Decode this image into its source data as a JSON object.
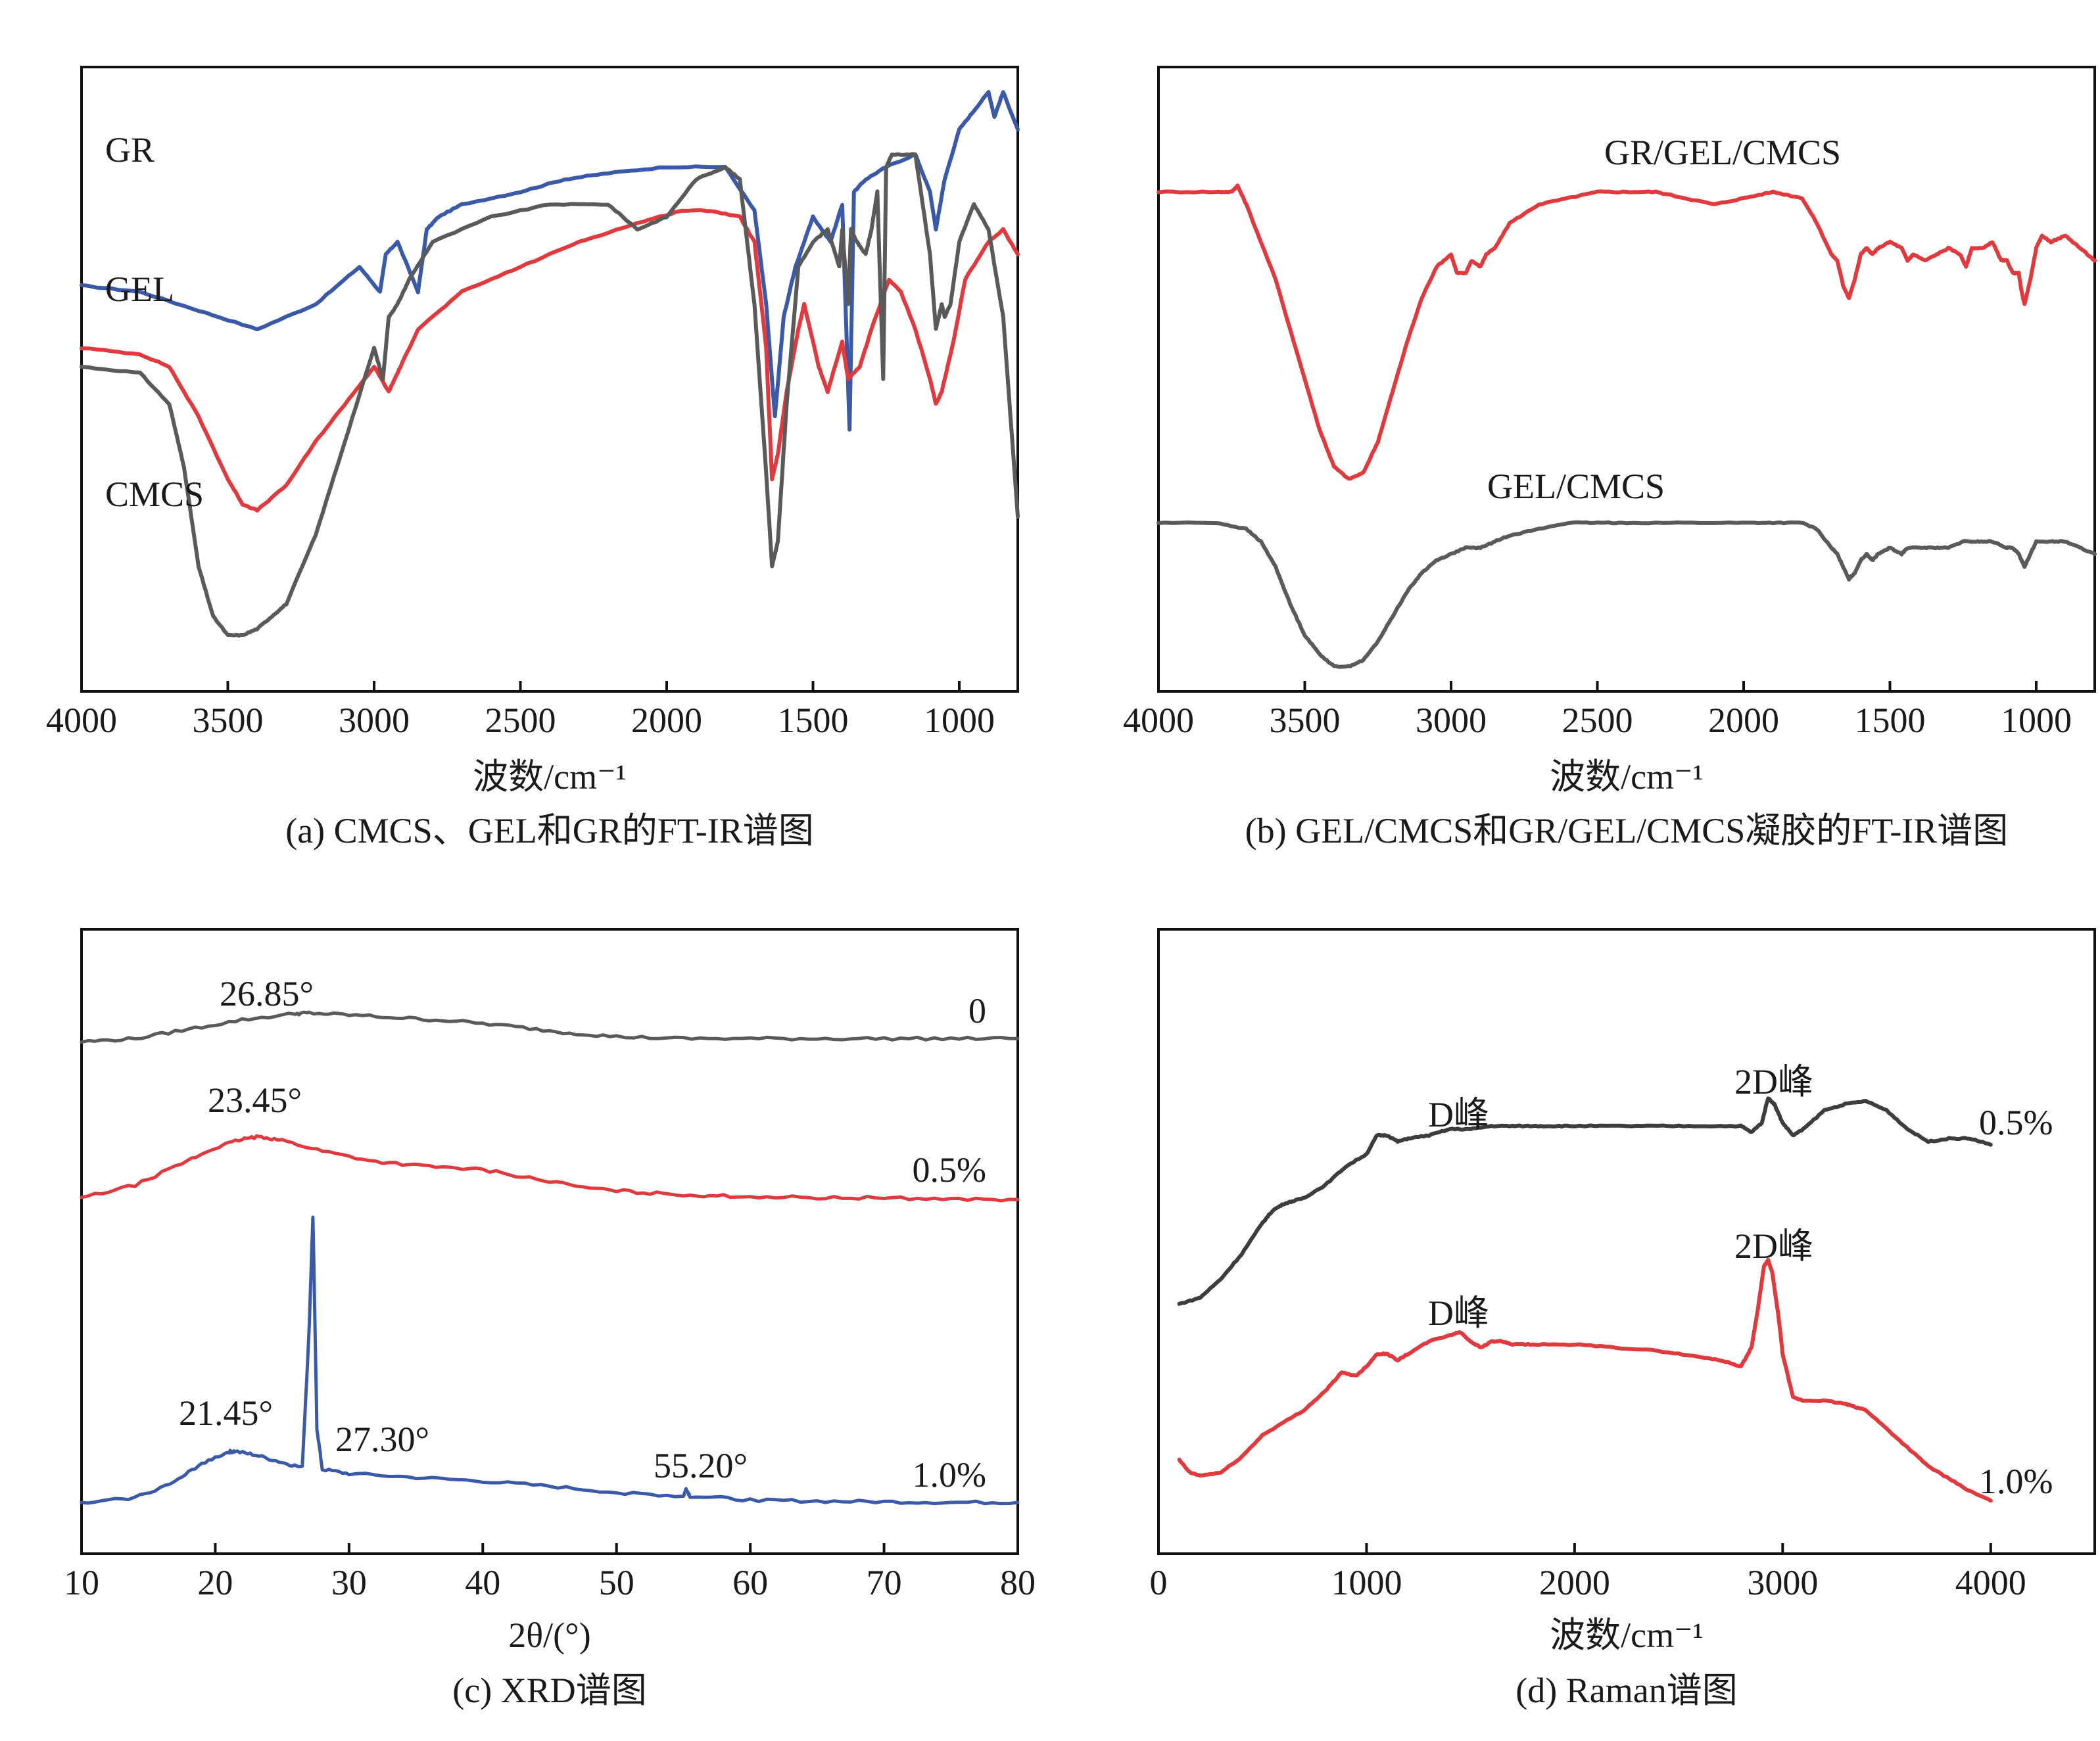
{
  "colors": {
    "gray": "#5a5a5a",
    "red": "#e03a3e",
    "blue": "#3a5aa8",
    "dark": "#3d3d3d",
    "axis": "#111111"
  },
  "chart_data": [
    {
      "id": "a",
      "type": "line",
      "caption": "(a) CMCS、GEL和GR的FT-IR谱图",
      "xlabel": "波数/cm⁻¹",
      "ylabel": "",
      "xlim": [
        4000,
        800
      ],
      "xticks": [
        4000,
        3500,
        3000,
        2500,
        2000,
        1500,
        1000
      ],
      "series": [
        {
          "name": "GR",
          "label": "GR",
          "color": "blue",
          "x": [
            4000,
            3800,
            3600,
            3400,
            3200,
            3050,
            2980,
            2960,
            2920,
            2850,
            2820,
            2780,
            2700,
            2500,
            2350,
            2200,
            2000,
            1800,
            1700,
            1660,
            1630,
            1600,
            1560,
            1500,
            1440,
            1400,
            1375,
            1360,
            1320,
            1250,
            1150,
            1100,
            1080,
            1050,
            1000,
            950,
            900,
            880,
            850,
            800
          ],
          "y": [
            65,
            64,
            61,
            58,
            62,
            68,
            64,
            70,
            72,
            64,
            74,
            76,
            78,
            80,
            82,
            83,
            84,
            84,
            77,
            62,
            44,
            60,
            68,
            76,
            72,
            78,
            42,
            80,
            82,
            84,
            86,
            80,
            74,
            82,
            90,
            93,
            96,
            92,
            96,
            90
          ]
        },
        {
          "name": "GEL",
          "label": "GEL",
          "color": "red",
          "x": [
            4000,
            3800,
            3700,
            3600,
            3500,
            3450,
            3400,
            3300,
            3200,
            3100,
            3000,
            2950,
            2930,
            2900,
            2850,
            2700,
            2500,
            2300,
            2100,
            1950,
            1850,
            1750,
            1700,
            1660,
            1640,
            1620,
            1590,
            1550,
            1530,
            1480,
            1450,
            1400,
            1380,
            1340,
            1300,
            1240,
            1200,
            1150,
            1100,
            1080,
            1060,
            1020,
            980,
            900,
            850,
            800
          ],
          "y": [
            55,
            54,
            52,
            44,
            34,
            30,
            29,
            33,
            40,
            46,
            52,
            48,
            50,
            53,
            58,
            64,
            68,
            72,
            75,
            77,
            77,
            76,
            72,
            55,
            34,
            38,
            48,
            58,
            62,
            52,
            48,
            56,
            50,
            52,
            58,
            66,
            64,
            58,
            50,
            46,
            48,
            56,
            66,
            72,
            74,
            70
          ]
        },
        {
          "name": "CMCS",
          "label": "CMCS",
          "color": "gray",
          "x": [
            4000,
            3800,
            3700,
            3650,
            3600,
            3550,
            3500,
            3450,
            3400,
            3350,
            3300,
            3200,
            3100,
            3000,
            2970,
            2950,
            2920,
            2880,
            2800,
            2600,
            2400,
            2200,
            2100,
            2000,
            1900,
            1800,
            1750,
            1700,
            1660,
            1640,
            1620,
            1590,
            1550,
            1500,
            1450,
            1410,
            1400,
            1380,
            1370,
            1350,
            1320,
            1300,
            1280,
            1260,
            1250,
            1230,
            1150,
            1100,
            1080,
            1060,
            1050,
            1030,
            1000,
            950,
            900,
            850,
            800
          ],
          "y": [
            52,
            51,
            46,
            36,
            20,
            12,
            9,
            9,
            10,
            12,
            14,
            25,
            40,
            55,
            50,
            60,
            62,
            66,
            72,
            76,
            78,
            78,
            74,
            76,
            82,
            84,
            82,
            62,
            35,
            20,
            24,
            46,
            68,
            72,
            74,
            68,
            74,
            62,
            74,
            72,
            70,
            74,
            80,
            50,
            84,
            86,
            86,
            70,
            58,
            62,
            60,
            62,
            72,
            78,
            74,
            60,
            28
          ]
        }
      ]
    },
    {
      "id": "b",
      "type": "line",
      "caption": "(b) GEL/CMCS和GR/GEL/CMCS凝胶的FT-IR谱图",
      "xlabel": "波数/cm⁻¹",
      "ylabel": "",
      "xlim": [
        4000,
        800
      ],
      "xticks": [
        4000,
        3500,
        3000,
        2500,
        2000,
        1500,
        1000
      ],
      "series": [
        {
          "name": "GR/GEL/CMCS",
          "label": "GR/GEL/CMCS",
          "color": "red",
          "x": [
            4000,
            3800,
            3750,
            3730,
            3700,
            3600,
            3500,
            3450,
            3400,
            3350,
            3300,
            3250,
            3200,
            3150,
            3100,
            3050,
            3000,
            2980,
            2950,
            2930,
            2900,
            2880,
            2850,
            2800,
            2700,
            2600,
            2500,
            2400,
            2300,
            2200,
            2100,
            2000,
            1900,
            1800,
            1750,
            1700,
            1680,
            1660,
            1640,
            1620,
            1600,
            1580,
            1560,
            1540,
            1500,
            1460,
            1440,
            1420,
            1380,
            1340,
            1300,
            1260,
            1240,
            1220,
            1180,
            1150,
            1120,
            1100,
            1080,
            1060,
            1050,
            1040,
            1020,
            1000,
            980,
            950,
            900,
            850,
            800
          ],
          "y": [
            80,
            80,
            80,
            81,
            78,
            66,
            50,
            42,
            36,
            34,
            35,
            40,
            48,
            56,
            63,
            68,
            70,
            67,
            67,
            69,
            68,
            70,
            71,
            75,
            78,
            79,
            80,
            80,
            80,
            79,
            78,
            79,
            80,
            79,
            75,
            70,
            69,
            65,
            63,
            66,
            70,
            71,
            70,
            71,
            72,
            71,
            69,
            70,
            69,
            70,
            71,
            70,
            68,
            71,
            71,
            72,
            69,
            69,
            67,
            67,
            64,
            62,
            66,
            71,
            73,
            72,
            73,
            71,
            69
          ]
        },
        {
          "name": "GEL/CMCS",
          "label": "GEL/CMCS",
          "color": "gray",
          "x": [
            4000,
            3800,
            3700,
            3650,
            3600,
            3550,
            3500,
            3450,
            3400,
            3350,
            3300,
            3250,
            3200,
            3150,
            3100,
            3050,
            3000,
            2950,
            2900,
            2850,
            2800,
            2700,
            2600,
            2500,
            2400,
            2200,
            2000,
            1900,
            1800,
            1750,
            1700,
            1680,
            1660,
            1640,
            1620,
            1600,
            1580,
            1560,
            1540,
            1500,
            1460,
            1440,
            1400,
            1350,
            1300,
            1250,
            1200,
            1150,
            1100,
            1080,
            1060,
            1050,
            1040,
            1020,
            1000,
            950,
            900,
            850,
            800
          ],
          "y": [
            27,
            27,
            26,
            24,
            20,
            14,
            9,
            6,
            4,
            4,
            5,
            8,
            12,
            16,
            19,
            21,
            22,
            23,
            23,
            24,
            25,
            26,
            27,
            27,
            27,
            27,
            27,
            27,
            27,
            26,
            23,
            22,
            20,
            18,
            19,
            21,
            22,
            21,
            22,
            23,
            22,
            23,
            23,
            23,
            23,
            24,
            24,
            24,
            23,
            23,
            22,
            21,
            20,
            22,
            24,
            24,
            24,
            23,
            22
          ]
        }
      ]
    },
    {
      "id": "c",
      "type": "line",
      "caption": "(c) XRD谱图",
      "xlabel": "2θ/(°)",
      "ylabel": "",
      "xlim": [
        10,
        80
      ],
      "xticks": [
        10,
        20,
        30,
        40,
        50,
        60,
        70,
        80
      ],
      "series": [
        {
          "name": "0",
          "label": "0",
          "color": "gray",
          "x": [
            10,
            14,
            18,
            22,
            26,
            27,
            30,
            34,
            38,
            42,
            46,
            50,
            55,
            60,
            65,
            70,
            75,
            80
          ],
          "y": [
            82,
            82.5,
            84,
            85.5,
            86.5,
            86.6,
            86.3,
            85.8,
            85.3,
            84.5,
            83.5,
            82.8,
            82.5,
            82.5,
            82.5,
            82.5,
            82.5,
            82.5
          ],
          "annotations": [
            {
              "label": "26.85°"
            }
          ]
        },
        {
          "name": "0.5%",
          "label": "0.5%",
          "color": "red",
          "x": [
            10,
            14,
            18,
            20,
            22,
            23.45,
            25,
            28,
            32,
            36,
            40,
            44,
            48,
            52,
            56,
            60,
            65,
            70,
            75,
            80
          ],
          "y": [
            57,
            59,
            63,
            65,
            66.4,
            66.8,
            66.2,
            64.5,
            62.8,
            62,
            61.5,
            60,
            58.5,
            57.8,
            57.4,
            57.2,
            57,
            57,
            56.8,
            56.7
          ],
          "annotations": [
            {
              "label": "23.45°"
            }
          ]
        },
        {
          "name": "1.0%",
          "label": "1.0%",
          "color": "blue",
          "x": [
            10,
            14,
            17,
            19,
            21,
            21.45,
            23,
            25,
            26.5,
            27.0,
            27.3,
            27.6,
            28,
            30,
            35,
            40,
            45,
            50,
            55,
            55.2,
            55.5,
            60,
            65,
            70,
            75,
            80
          ],
          "y": [
            8,
            9,
            11.5,
            14.5,
            16.3,
            16.4,
            15.8,
            14.6,
            13.8,
            35,
            54,
            20,
            13.5,
            12.8,
            12.2,
            11.6,
            10.8,
            9.8,
            9.2,
            10.4,
            9.2,
            8.6,
            8.4,
            8.3,
            8.2,
            8.2
          ],
          "annotations": [
            {
              "label": "21.45°"
            },
            {
              "label": "27.30°"
            },
            {
              "label": "55.20°"
            }
          ]
        }
      ]
    },
    {
      "id": "d",
      "type": "line",
      "caption": "(d) Raman谱图",
      "xlabel": "波数/cm⁻¹",
      "ylabel": "",
      "xlim": [
        0,
        4500
      ],
      "xticks": [
        0,
        1000,
        2000,
        3000,
        4000
      ],
      "series": [
        {
          "name": "0.5%",
          "label": "0.5%",
          "color": "dark",
          "x": [
            100,
            200,
            300,
            400,
            500,
            550,
            600,
            650,
            700,
            800,
            900,
            1000,
            1050,
            1100,
            1150,
            1200,
            1300,
            1400,
            1500,
            1600,
            1700,
            1800,
            1900,
            2000,
            2200,
            2400,
            2600,
            2800,
            2850,
            2900,
            2930,
            2960,
            3000,
            3050,
            3100,
            3200,
            3300,
            3400,
            3500,
            3600,
            3700,
            3800,
            3900,
            4000
          ],
          "y": [
            40,
            41,
            44,
            48,
            53,
            55,
            56,
            56.5,
            57,
            59,
            62,
            64,
            67,
            67,
            66,
            66.5,
            67,
            68,
            68,
            68.5,
            68.5,
            68.5,
            68.5,
            68.5,
            68.5,
            68.5,
            68.5,
            68.5,
            67.5,
            69,
            73,
            72,
            69,
            67,
            68,
            71,
            72,
            72.5,
            71,
            68,
            66,
            66.5,
            66.5,
            65.5
          ]
        },
        {
          "name": "1.0%",
          "label": "1.0%",
          "color": "red",
          "x": [
            100,
            150,
            200,
            300,
            400,
            500,
            600,
            700,
            800,
            880,
            950,
            1000,
            1050,
            1100,
            1150,
            1200,
            1300,
            1400,
            1450,
            1500,
            1550,
            1600,
            1650,
            1700,
            1800,
            2000,
            2200,
            2400,
            2600,
            2700,
            2800,
            2850,
            2880,
            2910,
            2930,
            2950,
            2980,
            3000,
            3050,
            3100,
            3200,
            3300,
            3350,
            3400,
            3500,
            3600,
            3700,
            3800,
            3900,
            4000
          ],
          "y": [
            15,
            13,
            12.5,
            13,
            15.5,
            19,
            21,
            23,
            26,
            29,
            28.5,
            30,
            32,
            32,
            31,
            32,
            34,
            35,
            35.5,
            34,
            33,
            34,
            34,
            33.5,
            33.5,
            33.5,
            33,
            32.5,
            31.5,
            31,
            30,
            33,
            39,
            46,
            47,
            45,
            38,
            32,
            25,
            24.5,
            24.5,
            24,
            23.5,
            23,
            20,
            17,
            14,
            12,
            10,
            8.5
          ],
          "annotations": [
            {
              "label": "D峰"
            },
            {
              "label": "2D峰"
            }
          ]
        }
      ],
      "annotations_0_5": [
        {
          "label": "D峰"
        },
        {
          "label": "2D峰"
        }
      ]
    }
  ]
}
